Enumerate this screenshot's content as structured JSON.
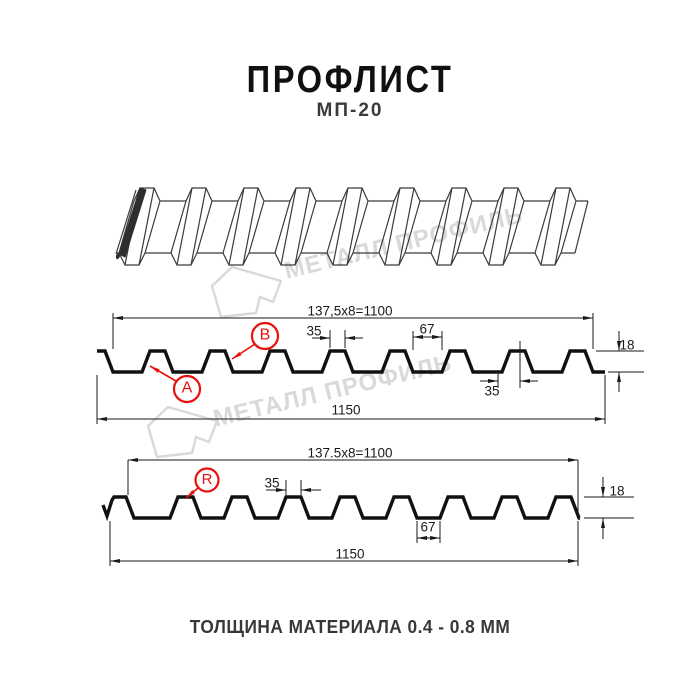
{
  "title": {
    "text": "ПРОФЛИСТ",
    "model": "МП-20"
  },
  "watermark": {
    "text": "МЕТАЛЛ ПРОФИЛЬ"
  },
  "footer": {
    "text": "ТОЛЩИНА МАТЕРИАЛА 0.4 - 0.8 ММ"
  },
  "colors": {
    "accent_red": "#e8100c",
    "line": "#1a1a1a",
    "profile_stroke": "#111111",
    "sheet_stroke": "#3a3a3a",
    "cut_edge": "#2e2e2e",
    "watermark": "#d9d9d9"
  },
  "front_section": {
    "view_labels": [
      {
        "id": "A"
      },
      {
        "id": "B"
      }
    ],
    "dimensions": {
      "pitch_total": "137,5x8=1100",
      "rib_top_width": "35",
      "valley_width": "67",
      "profile_height": "18",
      "rib_bottom_width": "35",
      "overall_width": "1150"
    }
  },
  "reverse_section": {
    "view_labels": [
      {
        "id": "R"
      }
    ],
    "dimensions": {
      "pitch_total": "137.5x8=1100",
      "rib_top_width": "35",
      "valley_width": "67",
      "profile_height": "18",
      "overall_width": "1150"
    }
  }
}
